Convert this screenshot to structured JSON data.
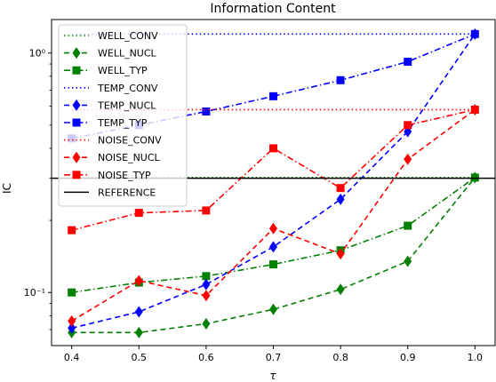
{
  "chart_data": {
    "type": "line",
    "title": "Information Content",
    "xlabel": "τ",
    "ylabel": "IC",
    "x": [
      0.4,
      0.5,
      0.6,
      0.7,
      0.8,
      0.9,
      1.0
    ],
    "x_ticks": [
      "0.4",
      "0.5",
      "0.6",
      "0.7",
      "0.8",
      "0.9",
      "1.0"
    ],
    "xlim": [
      0.37,
      1.03
    ],
    "yscale": "log",
    "ylim": [
      0.06,
      1.38
    ],
    "y_ticks": [
      {
        "value": 1.0,
        "label": "10⁰"
      },
      {
        "value": 0.1,
        "label": "10⁻¹"
      }
    ],
    "grid": false,
    "legend_position": "top-left",
    "reference": {
      "name": "REFERENCE",
      "value": 0.3,
      "color": "#000000"
    },
    "series": [
      {
        "name": "WELL_CONV",
        "color": "#008000",
        "linestyle": "dotted",
        "marker": "none",
        "values": [
          0.302,
          0.302,
          0.302,
          0.302,
          0.302,
          0.302,
          0.302
        ]
      },
      {
        "name": "WELL_NUCL",
        "color": "#008000",
        "linestyle": "dashed",
        "marker": "diamond",
        "values": [
          0.068,
          0.068,
          0.074,
          0.085,
          0.103,
          0.135,
          0.302
        ]
      },
      {
        "name": "WELL_TYP",
        "color": "#008000",
        "linestyle": "dashdot",
        "marker": "square",
        "values": [
          0.1,
          0.11,
          0.117,
          0.131,
          0.15,
          0.19,
          0.302
        ]
      },
      {
        "name": "TEMP_CONV",
        "color": "#0000ff",
        "linestyle": "dotted",
        "marker": "none",
        "values": [
          1.2,
          1.2,
          1.2,
          1.2,
          1.2,
          1.2,
          1.2
        ]
      },
      {
        "name": "TEMP_NUCL",
        "color": "#0000ff",
        "linestyle": "dashed",
        "marker": "diamond",
        "values": [
          0.071,
          0.083,
          0.108,
          0.155,
          0.245,
          0.47,
          1.2
        ]
      },
      {
        "name": "TEMP_TYP",
        "color": "#0000ff",
        "linestyle": "dashdot",
        "marker": "square",
        "values": [
          0.44,
          0.5,
          0.57,
          0.66,
          0.77,
          0.92,
          1.2
        ]
      },
      {
        "name": "NOISE_CONV",
        "color": "#ff0000",
        "linestyle": "dotted",
        "marker": "none",
        "values": [
          0.58,
          0.58,
          0.58,
          0.58,
          0.58,
          0.58,
          0.58
        ]
      },
      {
        "name": "NOISE_NUCL",
        "color": "#ff0000",
        "linestyle": "dashed",
        "marker": "diamond",
        "values": [
          0.076,
          0.112,
          0.097,
          0.185,
          0.145,
          0.36,
          0.58
        ]
      },
      {
        "name": "NOISE_TYP",
        "color": "#ff0000",
        "linestyle": "dashdot",
        "marker": "square",
        "values": [
          0.182,
          0.215,
          0.22,
          0.4,
          0.273,
          0.5,
          0.58
        ]
      }
    ]
  }
}
